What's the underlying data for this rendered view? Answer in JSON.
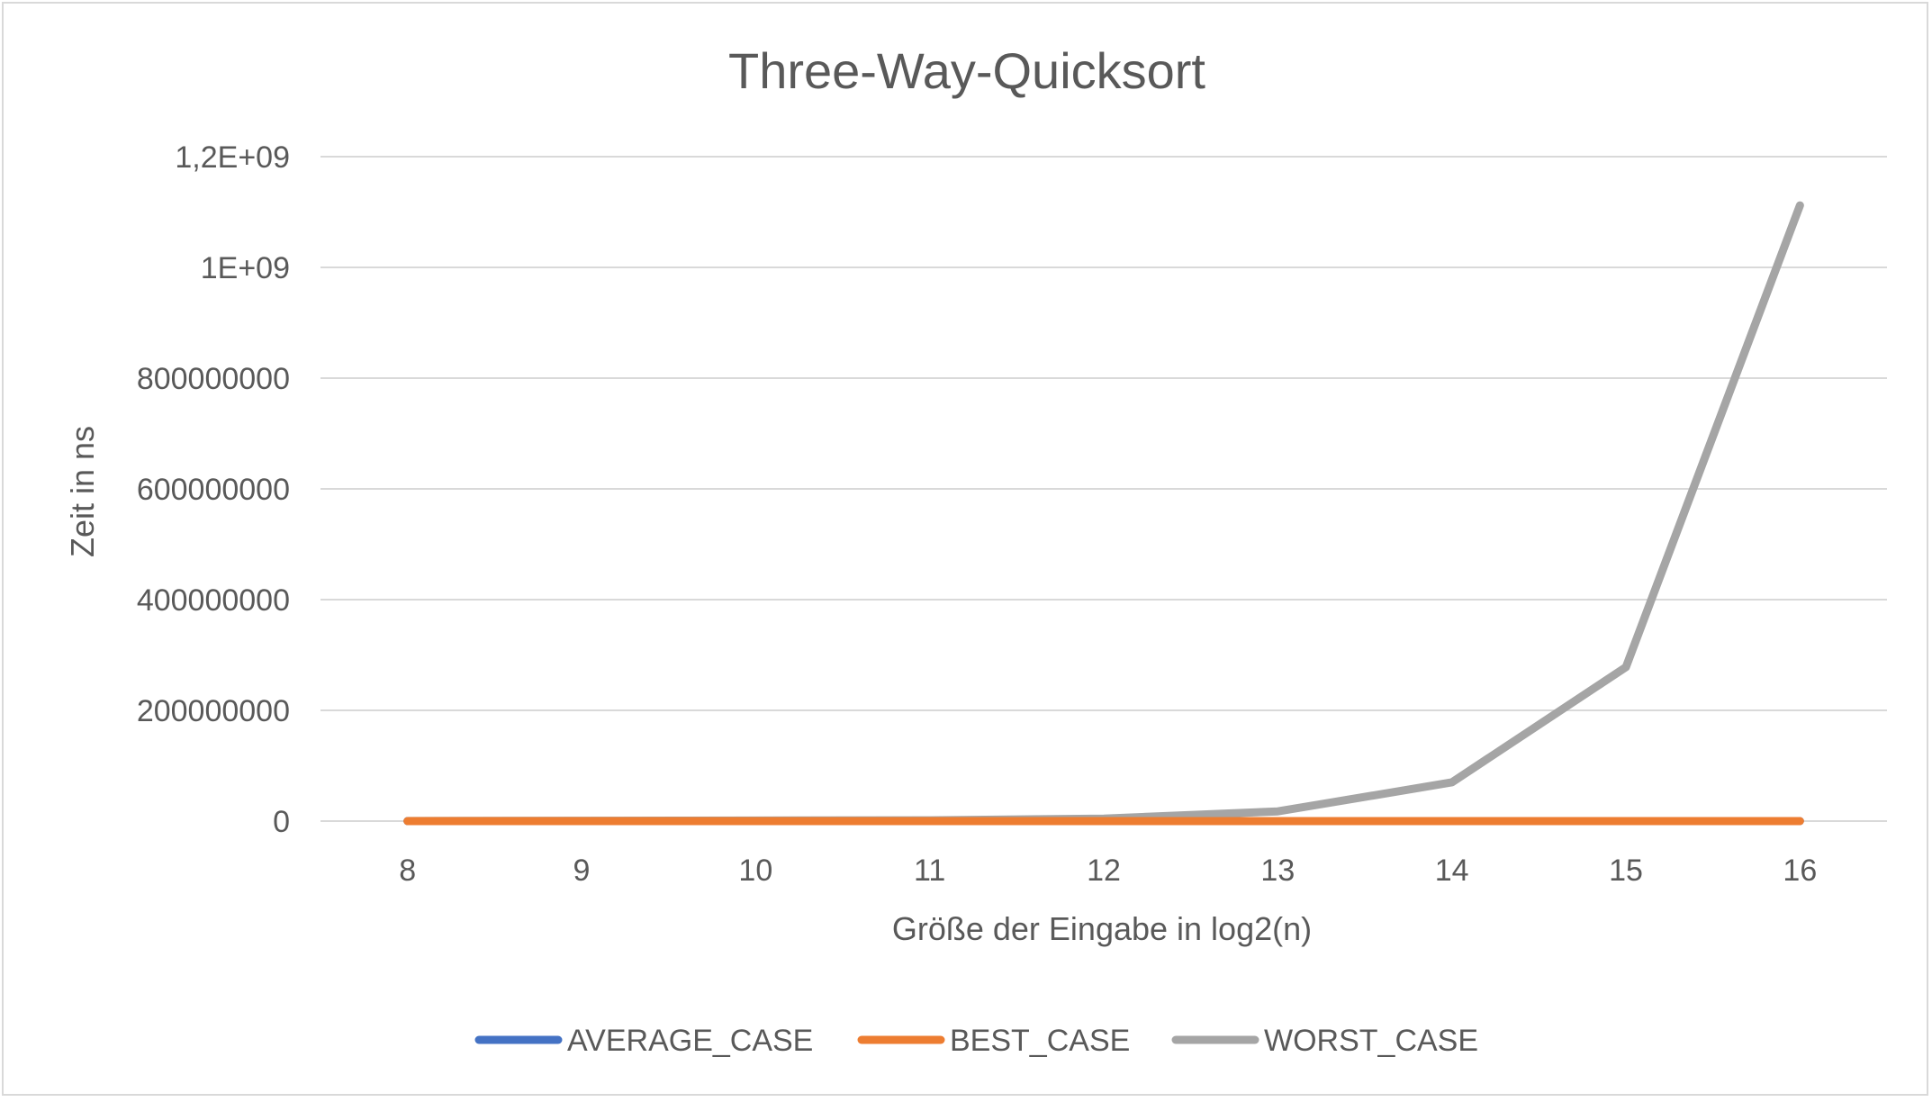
{
  "chart_data": {
    "type": "line",
    "title": "Three-Way-Quicksort",
    "xlabel": "Größe der Eingabe in log2(n)",
    "ylabel": "Zeit in ns",
    "categories": [
      "8",
      "9",
      "10",
      "11",
      "12",
      "13",
      "14",
      "15",
      "16"
    ],
    "ylim": [
      0,
      1200000000
    ],
    "yticks": [
      {
        "value": 0,
        "label": "0"
      },
      {
        "value": 200000000,
        "label": "200000000"
      },
      {
        "value": 400000000,
        "label": "400000000"
      },
      {
        "value": 600000000,
        "label": "600000000"
      },
      {
        "value": 800000000,
        "label": "800000000"
      },
      {
        "value": 1000000000,
        "label": "1E+09"
      },
      {
        "value": 1200000000,
        "label": "1,2E+09"
      }
    ],
    "grid": true,
    "legend_position": "bottom",
    "series": [
      {
        "name": "AVERAGE_CASE",
        "color": "#4472c4",
        "values": [
          0,
          0,
          0,
          0,
          0,
          0,
          0,
          0,
          0
        ]
      },
      {
        "name": "BEST_CASE",
        "color": "#ed7d31",
        "values": [
          0,
          0,
          0,
          0,
          0,
          0,
          0,
          0,
          0
        ]
      },
      {
        "name": "WORST_CASE",
        "color": "#a5a5a5",
        "values": [
          200000,
          600000,
          1000000,
          1500000,
          4500000,
          17500000,
          70000000,
          278000000,
          1112000000
        ]
      }
    ]
  }
}
